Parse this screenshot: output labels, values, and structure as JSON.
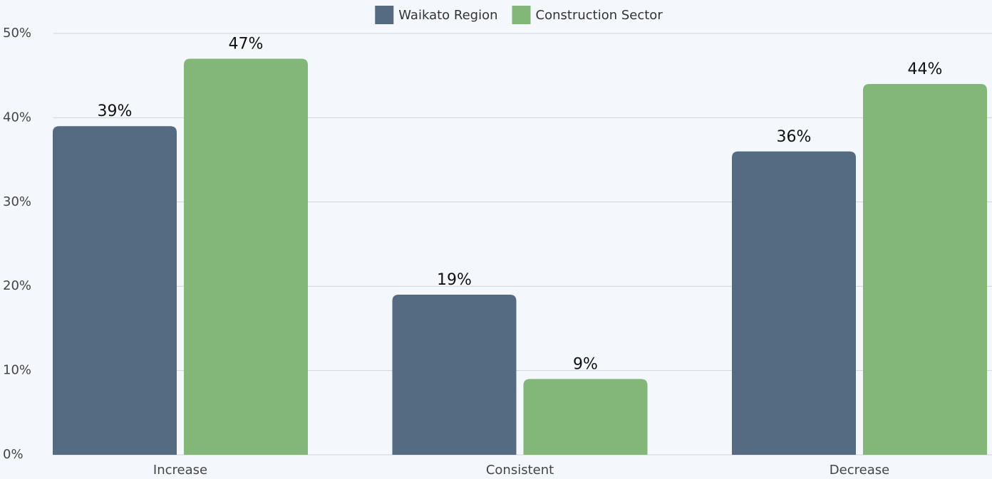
{
  "chart_data": {
    "type": "bar",
    "categories": [
      "Increase",
      "Consistent",
      "Decrease"
    ],
    "series": [
      {
        "name": "Waikato Region",
        "color": "#556b82",
        "values": [
          39,
          19,
          36
        ],
        "value_labels": [
          "39%",
          "19%",
          "36%"
        ]
      },
      {
        "name": "Construction Sector",
        "color": "#82b777",
        "values": [
          47,
          9,
          44
        ],
        "value_labels": [
          "47%",
          "9%",
          "44%"
        ]
      }
    ],
    "ylim": [
      0,
      50
    ],
    "yticks": [
      {
        "value": 0,
        "label": "0%"
      },
      {
        "value": 10,
        "label": "10%"
      },
      {
        "value": 20,
        "label": "20%"
      },
      {
        "value": 30,
        "label": "30%"
      },
      {
        "value": 40,
        "label": "40%"
      },
      {
        "value": 50,
        "label": "50%"
      }
    ],
    "grid": true,
    "legend": "top"
  }
}
